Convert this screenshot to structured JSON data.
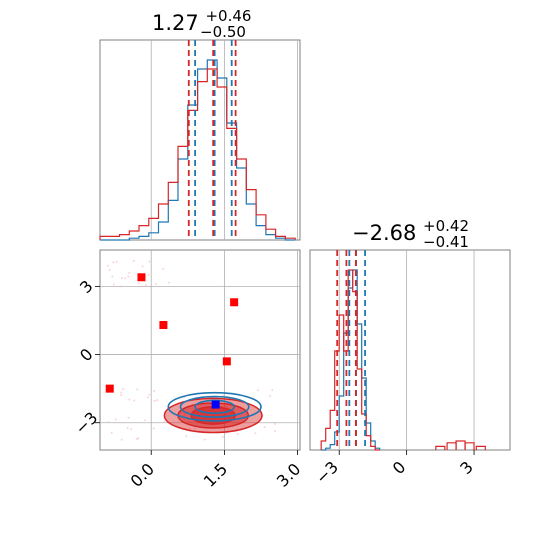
{
  "chart_data": {
    "type": "corner",
    "parameters": [
      {
        "title": {
          "value": "1.27",
          "upper": "+0.46",
          "lower": "−0.50"
        },
        "quantiles": [
          0.77,
          1.27,
          1.73
        ],
        "xlim": [
          -1.05,
          3.05
        ],
        "hist": {
          "bins": [
            -1.05,
            -0.85,
            -0.65,
            -0.45,
            -0.25,
            -0.05,
            0.15,
            0.35,
            0.55,
            0.75,
            0.95,
            1.15,
            1.35,
            1.55,
            1.75,
            1.95,
            2.15,
            2.35,
            2.55,
            2.75,
            2.95
          ],
          "series": [
            {
              "name": "blue",
              "color": "#1f77b4",
              "counts": [
                0,
                0,
                0,
                1,
                2,
                4,
                10,
                22,
                45,
                75,
                95,
                100,
                90,
                65,
                40,
                20,
                8,
                3,
                1,
                0
              ]
            },
            {
              "name": "red",
              "color": "#d62728",
              "counts": [
                2,
                2,
                3,
                5,
                8,
                12,
                20,
                32,
                52,
                72,
                88,
                95,
                85,
                62,
                45,
                28,
                14,
                6,
                2,
                1
              ]
            }
          ]
        },
        "quantile_lines": [
          {
            "series": "blue",
            "color": "#1f77b4",
            "values": [
              0.9,
              1.3,
              1.65
            ]
          },
          {
            "series": "red",
            "color": "#d62728",
            "values": [
              0.77,
              1.27,
              1.73
            ]
          }
        ]
      },
      {
        "title": {
          "value": "−2.68",
          "upper": "+0.42",
          "lower": "−0.41"
        },
        "quantiles": [
          -3.09,
          -2.68,
          -2.26
        ],
        "xlim": [
          -4.3,
          4.6
        ],
        "xticks": [
          -3,
          0,
          3
        ],
        "xtick_labels": [
          "−3",
          "0",
          "3"
        ],
        "hist": {
          "bins": [
            -3.8,
            -3.6,
            -3.4,
            -3.2,
            -3.0,
            -2.8,
            -2.6,
            -2.4,
            -2.2,
            -2.0,
            -1.8,
            -1.6,
            -1.4,
            -1.2
          ],
          "series": [
            {
              "name": "blue",
              "color": "#1f77b4",
              "counts": [
                0,
                1,
                3,
                10,
                30,
                65,
                90,
                100,
                70,
                40,
                15,
                5,
                1
              ]
            },
            {
              "name": "red",
              "color": "#d62728",
              "counts": [
                5,
                12,
                22,
                55,
                75,
                55,
                100,
                88,
                45,
                20,
                8,
                2,
                0
              ]
            }
          ]
        },
        "red_tail": [
          {
            "x": 1.5,
            "count": 2
          },
          {
            "x": 2.0,
            "count": 4
          },
          {
            "x": 2.4,
            "count": 5
          },
          {
            "x": 2.8,
            "count": 4
          },
          {
            "x": 3.3,
            "count": 2
          }
        ],
        "quantile_lines": [
          {
            "series": "blue",
            "color": "#1f77b4",
            "values": [
              -2.55,
              -2.25,
              -1.85
            ]
          },
          {
            "series": "red",
            "color": "#d62728",
            "values": [
              -3.09,
              -2.68,
              -2.26
            ]
          }
        ]
      }
    ],
    "joint": {
      "xlim": [
        -1.05,
        3.05
      ],
      "ylim": [
        -4.2,
        4.6
      ],
      "xticks": [
        0.0,
        1.5,
        3.0
      ],
      "xtick_labels": [
        "0.0",
        "1.5",
        "3.0"
      ],
      "yticks": [
        -3,
        0,
        3
      ],
      "ytick_labels": [
        "−3",
        "0",
        "3"
      ],
      "red_contours": {
        "center": [
          1.27,
          -2.68
        ],
        "levels": [
          {
            "rx": 1.0,
            "ry": 0.75,
            "fill_opacity": 0.45
          },
          {
            "rx": 0.72,
            "ry": 0.55,
            "fill_opacity": 0.55
          },
          {
            "rx": 0.45,
            "ry": 0.38,
            "fill_opacity": 0.7
          }
        ]
      },
      "blue_contours": {
        "center": [
          1.3,
          -2.3
        ],
        "levels": [
          {
            "rx": 0.95,
            "ry": 0.62
          },
          {
            "rx": 0.7,
            "ry": 0.45
          },
          {
            "rx": 0.4,
            "ry": 0.28
          }
        ]
      },
      "red_squares": [
        {
          "x": -0.85,
          "y": -1.5
        },
        {
          "x": -0.2,
          "y": 3.4
        },
        {
          "x": 0.25,
          "y": 1.3
        },
        {
          "x": 1.55,
          "y": -0.3
        },
        {
          "x": 1.7,
          "y": 2.3
        }
      ],
      "blue_square": {
        "x": 1.32,
        "y": -2.2
      },
      "colors": {
        "red": "#d62728",
        "marker_red": "#ff0000",
        "blue": "#1f77b4",
        "marker_blue": "#0000ff"
      }
    }
  }
}
